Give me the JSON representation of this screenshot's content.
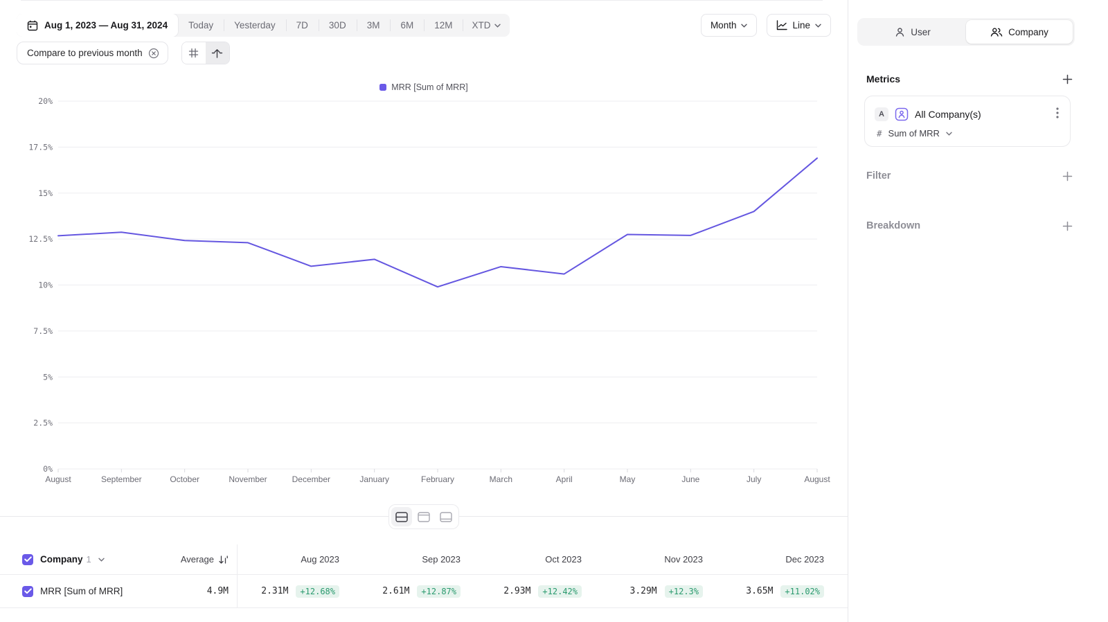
{
  "colors": {
    "accent": "#6a59e8",
    "line": "#6456e0",
    "green_bg": "#e6f3ed",
    "green_text": "#2a9a6e"
  },
  "toolbar": {
    "date_range": "Aug 1, 2023 — Aug 31, 2024",
    "ranges": [
      "Today",
      "Yesterday",
      "7D",
      "30D",
      "3M",
      "6M",
      "12M"
    ],
    "xtd_label": "XTD",
    "compare_chip": "Compare to previous month",
    "granularity": "Month",
    "chart_type": "Line"
  },
  "sidebar": {
    "tabs": {
      "user": "User",
      "company": "Company"
    },
    "metrics_title": "Metrics",
    "metric_card": {
      "badge": "A",
      "name": "All Company(s)",
      "hash": "#",
      "aggregation": "Sum of MRR"
    },
    "filter_label": "Filter",
    "breakdown_label": "Breakdown"
  },
  "chart_data": {
    "type": "line",
    "title": "",
    "legend": [
      "MRR [Sum of MRR]"
    ],
    "legend_position": "top",
    "x": [
      "August",
      "September",
      "October",
      "November",
      "December",
      "January",
      "February",
      "March",
      "April",
      "May",
      "June",
      "July",
      "August"
    ],
    "series": [
      {
        "name": "MRR [Sum of MRR]",
        "values": [
          12.68,
          12.87,
          12.42,
          12.3,
          11.02,
          11.4,
          9.9,
          11.0,
          10.6,
          12.75,
          12.7,
          14.0,
          16.9
        ]
      }
    ],
    "xlabel": "",
    "ylabel": "",
    "ylim": [
      0,
      20
    ],
    "ytick_step": 2.5,
    "ytick_labels": [
      "0%",
      "2.5%",
      "5%",
      "7.5%",
      "10%",
      "12.5%",
      "15%",
      "17.5%",
      "20%"
    ],
    "grid": true,
    "line_color": "#6456e0"
  },
  "table": {
    "entity": "Company",
    "entity_count": "1",
    "average_label": "Average",
    "columns": [
      "Aug 2023",
      "Sep 2023",
      "Oct 2023",
      "Nov 2023",
      "Dec 2023"
    ],
    "rows": [
      {
        "label": "MRR [Sum of MRR]",
        "average": "4.9M",
        "values": [
          {
            "value": "2.31M",
            "delta": "+12.68%"
          },
          {
            "value": "2.61M",
            "delta": "+12.87%"
          },
          {
            "value": "2.93M",
            "delta": "+12.42%"
          },
          {
            "value": "3.29M",
            "delta": "+12.3%"
          },
          {
            "value": "3.65M",
            "delta": "+11.02%"
          }
        ]
      }
    ]
  }
}
